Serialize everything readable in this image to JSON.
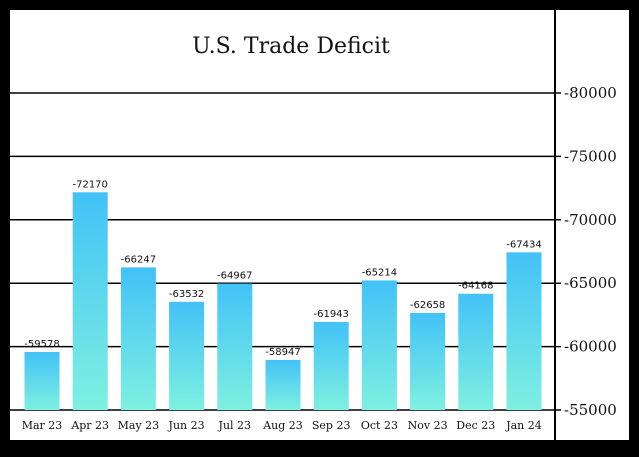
{
  "chart_data": {
    "type": "bar",
    "title": "U.S. Trade Deficit",
    "categories": [
      "Mar 23",
      "Apr 23",
      "May 23",
      "Jun 23",
      "Jul 23",
      "Aug 23",
      "Sep 23",
      "Oct 23",
      "Nov 23",
      "Dec 23",
      "Jan 24"
    ],
    "values": [
      -59578,
      -72170,
      -66247,
      -63532,
      -64967,
      -58947,
      -61943,
      -65214,
      -62658,
      -64168,
      -67434
    ],
    "value_labels": [
      "-59578",
      "-72170",
      "-66247",
      "-63532",
      "-64967",
      "-58947",
      "-61943",
      "-65214",
      "-62658",
      "-64168",
      "-67434"
    ],
    "yticks": [
      -55000,
      -60000,
      -65000,
      -70000,
      -75000,
      -80000
    ],
    "ytick_labels": [
      "-55000",
      "-60000",
      "-65000",
      "-70000",
      "-75000",
      "-80000"
    ],
    "ylim": [
      -55000,
      -80000
    ],
    "y_axis_inverted": true,
    "y_axis_position": "right",
    "grid": true,
    "bar_colors": {
      "top": "#42c2f7",
      "bottom": "#7ef0e0"
    },
    "background": "#ffffff",
    "frame": "#000000"
  }
}
